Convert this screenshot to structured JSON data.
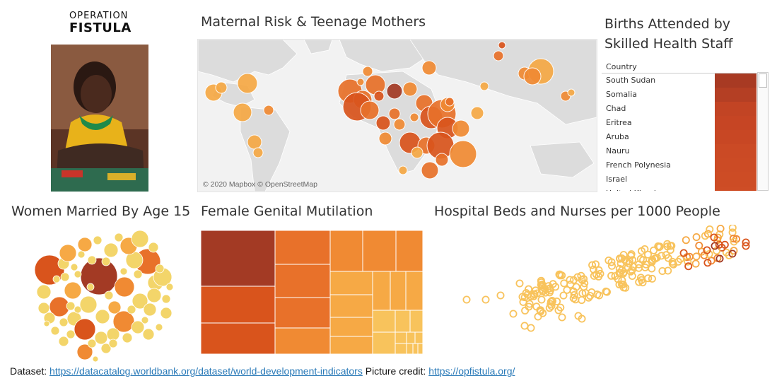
{
  "logo": {
    "top": "OPERATION",
    "main": "FISTULA"
  },
  "titles": {
    "map": "Maternal Risk & Teenage Mothers",
    "births": "Births Attended by Skilled Health Staff",
    "married": "Women Married By Age 15",
    "fgm": "Female Genital Mutilation",
    "hospital": "Hospital Beds and Nurses per 1000 People"
  },
  "map": {
    "attribution": "© 2020 Mapbox © OpenStreetMap"
  },
  "births_table": {
    "column_header": "Country",
    "rows": [
      "South Sudan",
      "Somalia",
      "Chad",
      "Eritrea",
      "Aruba",
      "Nauru",
      "French Polynesia",
      "Israel",
      "United Kingdom"
    ],
    "bar_colors": [
      "#a83a23",
      "#b43f24",
      "#c24424",
      "#c64524",
      "#c84724",
      "#cb4a25",
      "#cc4b25",
      "#cd4c25",
      "#ce4d26"
    ]
  },
  "footer": {
    "dataset_label": "Dataset:",
    "dataset_link": "https://datacatalog.worldbank.org/dataset/world-development-indicators",
    "credit_label": "Picture credit:",
    "credit_link": "https://opfistula.org/"
  },
  "colors": {
    "dark": "#a33a24",
    "deep": "#d9541c",
    "orange": "#e8712a",
    "mid": "#f08a33",
    "light": "#f6a945",
    "pale": "#f8c35c",
    "yellow": "#f3d56a",
    "map_land": "#dcdcdc",
    "map_water": "#f2f2f2"
  }
}
